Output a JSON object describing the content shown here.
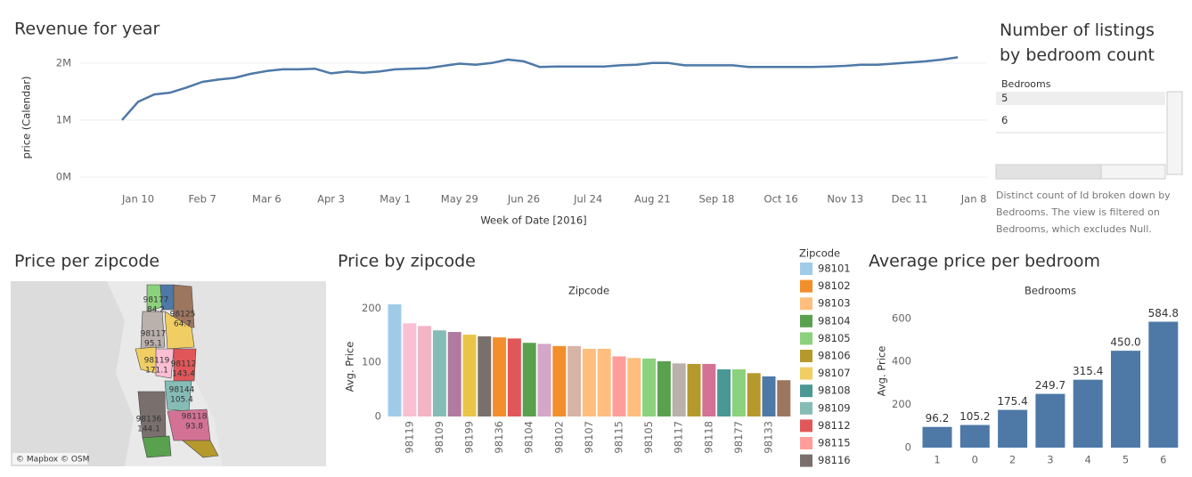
{
  "chart_data": [
    {
      "type": "line",
      "title": "Revenue for year",
      "x_label": "Week of Date [2016]",
      "y_label": "price (Calendar)",
      "categories": [
        null,
        "Jan 10",
        null,
        null,
        null,
        "Feb 7",
        null,
        null,
        null,
        "Mar 6",
        null,
        null,
        null,
        "Apr 3",
        null,
        null,
        null,
        "May 1",
        null,
        null,
        null,
        "May 29",
        null,
        null,
        null,
        "Jun 26",
        null,
        null,
        null,
        "Jul 24",
        null,
        null,
        null,
        "Aug 21",
        null,
        null,
        null,
        "Sep 18",
        null,
        null,
        null,
        "Oct 16",
        null,
        null,
        null,
        "Nov 13",
        null,
        null,
        null,
        "Dec 11",
        null,
        null,
        null,
        "Jan 8"
      ],
      "values": [
        1000000,
        1320000,
        1450000,
        1480000,
        1570000,
        1670000,
        1710000,
        1740000,
        1810000,
        1860000,
        1890000,
        1890000,
        1900000,
        1820000,
        1850000,
        1830000,
        1850000,
        1890000,
        1900000,
        1910000,
        1950000,
        1990000,
        1970000,
        2000000,
        2060000,
        2030000,
        1930000,
        1940000,
        1940000,
        1940000,
        1940000,
        1960000,
        1970000,
        2000000,
        2000000,
        1960000,
        1960000,
        1960000,
        1960000,
        1930000,
        1930000,
        1930000,
        1930000,
        1930000,
        1940000,
        1950000,
        1970000,
        1970000,
        1990000,
        2010000,
        2030000,
        2060000,
        2100000,
        null
      ],
      "color": "#4e79a7",
      "ylim": [
        0,
        2200000
      ],
      "yticks": [
        {
          "value": 0,
          "label": "0M"
        },
        {
          "value": 1000000,
          "label": "1M"
        },
        {
          "value": 2000000,
          "label": "2M"
        }
      ],
      "grid": true
    },
    {
      "type": "bar",
      "title": "Price by zipcode",
      "subtitle": "Zipcode",
      "y_label": "Avg. Price",
      "categories": [
        null,
        "98119",
        null,
        "98109",
        null,
        "98199",
        null,
        "98136",
        null,
        "98104",
        null,
        "98102",
        null,
        "98107",
        null,
        "98115",
        null,
        "98105",
        null,
        "98117",
        null,
        "98118",
        null,
        "98177",
        null,
        "98133",
        null
      ],
      "values": [
        207,
        172,
        167,
        159,
        156,
        151,
        148,
        146,
        144,
        136,
        134,
        130,
        130,
        125,
        125,
        111,
        108,
        107,
        102,
        98,
        97,
        97,
        87,
        87,
        80,
        74,
        67
      ],
      "colors": [
        "#a0cbe8",
        "#fabfd2",
        "#f3b4c6",
        "#86bcb6",
        "#b07aa1",
        "#e8c547",
        "#79706e",
        "#f28e2b",
        "#e15759",
        "#59a14f",
        "#d4a6c8",
        "#f28e2b",
        "#d7b5a6",
        "#ffbe7d",
        "#ffbe7d",
        "#ff9d9a",
        "#ffbe7d",
        "#8cd17d",
        "#59a14f",
        "#bab0ac",
        "#b6992d",
        "#d37295",
        "#499894",
        "#8cd17d",
        "#b6992d",
        "#4e79a7",
        "#9d7660"
      ],
      "ylim": [
        0,
        230
      ],
      "yticks": [
        0,
        100,
        200
      ],
      "grid": false,
      "legend": {
        "title": "Zipcode",
        "entries": [
          {
            "name": "98101",
            "color": "#a0cbe8"
          },
          {
            "name": "98102",
            "color": "#f28e2b"
          },
          {
            "name": "98103",
            "color": "#ffbe7d"
          },
          {
            "name": "98104",
            "color": "#59a14f"
          },
          {
            "name": "98105",
            "color": "#8cd17d"
          },
          {
            "name": "98106",
            "color": "#b6992d"
          },
          {
            "name": "98107",
            "color": "#f1ce63"
          },
          {
            "name": "98108",
            "color": "#499894"
          },
          {
            "name": "98109",
            "color": "#86bcb6"
          },
          {
            "name": "98112",
            "color": "#e15759"
          },
          {
            "name": "98115",
            "color": "#ff9d9a"
          },
          {
            "name": "98116",
            "color": "#79706e"
          }
        ]
      }
    },
    {
      "type": "bar",
      "title": "Average price per bedroom",
      "subtitle": "Bedrooms",
      "y_label": "Avg. Price",
      "categories": [
        "1",
        "0",
        "2",
        "3",
        "4",
        "5",
        "6"
      ],
      "values": [
        96.2,
        105.2,
        175.4,
        249.7,
        315.4,
        450.0,
        584.8
      ],
      "value_labels": [
        "96.2",
        "105.2",
        "175.4",
        "249.7",
        "315.4",
        "450.0",
        "584.8"
      ],
      "color": "#4e79a7",
      "ylim": [
        0,
        620
      ],
      "yticks": [
        0,
        200,
        400,
        600
      ],
      "grid": false
    }
  ],
  "listings_panel": {
    "title": "Number of listings by bedroom count",
    "header": "Bedrooms",
    "rows": [
      "5",
      "6"
    ],
    "note": "Distinct count of Id broken down by Bedrooms. The view is filtered on Bedrooms, which excludes Null."
  },
  "map_panel": {
    "title": "Price per zipcode",
    "attribution": "© Mapbox © OSM",
    "labels": [
      {
        "zipcode": "98177",
        "price": 84.2
      },
      {
        "zipcode": "98125",
        "price": 64.7
      },
      {
        "zipcode": "98117",
        "price": 95.1
      },
      {
        "zipcode": "98119",
        "price": 171.1
      },
      {
        "zipcode": "98112",
        "price": 143.4
      },
      {
        "zipcode": "98144",
        "price": 105.4
      },
      {
        "zipcode": "98136",
        "price": 144.1
      },
      {
        "zipcode": "98118",
        "price": 93.8
      }
    ]
  }
}
